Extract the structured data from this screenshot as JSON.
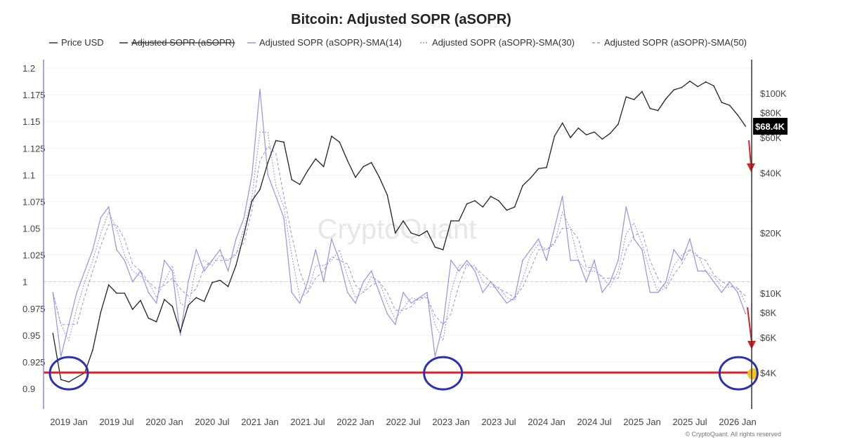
{
  "chart_data": {
    "type": "line",
    "title": "Bitcoin: Adjusted SOPR (aSOPR)",
    "legend": [
      "Price USD",
      "Adjusted SOPR (aSOPR)",
      "Adjusted SOPR (aSOPR)-SMA(14)",
      "Adjusted SOPR (aSOPR)-SMA(30)",
      "Adjusted SOPR (aSOPR)-SMA(50)"
    ],
    "legend_placement": "top",
    "legend_hidden": [
      "Adjusted SOPR (aSOPR)"
    ],
    "y_left": {
      "ticks": [
        "1.2",
        "1.175",
        "1.15",
        "1.125",
        "1.1",
        "1.075",
        "1.05",
        "1.025",
        "1",
        "0.975",
        "0.95",
        "0.925",
        "0.9"
      ],
      "range": [
        0.895,
        1.205
      ]
    },
    "y_right": {
      "scale": "log",
      "ticks": [
        "$100K",
        "$80K",
        "$60K",
        "$40K",
        "$20K",
        "$10K",
        "$8K",
        "$6K",
        "$4K"
      ],
      "tick_values": [
        100000,
        80000,
        60000,
        40000,
        20000,
        10000,
        8000,
        6000,
        4000
      ]
    },
    "x_ticks": [
      "2019 Jan",
      "2019 Jul",
      "2020 Jan",
      "2020 Jul",
      "2021 Jan",
      "2021 Jul",
      "2022 Jan",
      "2022 Jul",
      "2023 Jan",
      "2023 Jul",
      "2024 Jan",
      "2024 Jul",
      "2025 Jan",
      "2025 Jul",
      "2026 Jan"
    ],
    "x": [
      "2018-11",
      "2018-12",
      "2019-01",
      "2019-02",
      "2019-03",
      "2019-04",
      "2019-05",
      "2019-06",
      "2019-07",
      "2019-08",
      "2019-09",
      "2019-10",
      "2019-11",
      "2019-12",
      "2020-01",
      "2020-02",
      "2020-03",
      "2020-04",
      "2020-05",
      "2020-06",
      "2020-07",
      "2020-08",
      "2020-09",
      "2020-10",
      "2020-11",
      "2020-12",
      "2021-01",
      "2021-02",
      "2021-03",
      "2021-04",
      "2021-05",
      "2021-06",
      "2021-07",
      "2021-08",
      "2021-09",
      "2021-10",
      "2021-11",
      "2021-12",
      "2022-01",
      "2022-02",
      "2022-03",
      "2022-04",
      "2022-05",
      "2022-06",
      "2022-07",
      "2022-08",
      "2022-09",
      "2022-10",
      "2022-11",
      "2022-12",
      "2023-01",
      "2023-02",
      "2023-03",
      "2023-04",
      "2023-05",
      "2023-06",
      "2023-07",
      "2023-08",
      "2023-09",
      "2023-10",
      "2023-11",
      "2023-12",
      "2024-01",
      "2024-02",
      "2024-03",
      "2024-04",
      "2024-05",
      "2024-06",
      "2024-07",
      "2024-08",
      "2024-09",
      "2024-10",
      "2024-11",
      "2024-12",
      "2025-01",
      "2025-02",
      "2025-03",
      "2025-04",
      "2025-05",
      "2025-06",
      "2025-07",
      "2025-08",
      "2025-09",
      "2025-10",
      "2025-11",
      "2025-12",
      "2026-01",
      "2026-02"
    ],
    "series": [
      {
        "name": "Price USD",
        "axis": "right",
        "color": "#222222",
        "values": [
          6300,
          3700,
          3600,
          3800,
          4000,
          5200,
          8000,
          11000,
          10000,
          10000,
          8300,
          9200,
          7500,
          7200,
          9300,
          8600,
          6400,
          8700,
          9500,
          9100,
          11300,
          11600,
          10800,
          13800,
          19700,
          29000,
          33000,
          45000,
          58000,
          57000,
          37000,
          35000,
          41000,
          47000,
          43000,
          61000,
          57000,
          46000,
          38000,
          43000,
          45000,
          38000,
          31000,
          20000,
          23000,
          20000,
          19400,
          20500,
          17000,
          16500,
          23000,
          23000,
          28000,
          29000,
          27000,
          30500,
          29000,
          26000,
          27000,
          34500,
          37700,
          42000,
          42500,
          61000,
          71000,
          60000,
          67000,
          62000,
          64000,
          59000,
          63000,
          70000,
          96000,
          93000,
          102000,
          84000,
          82000,
          94000,
          104000,
          107000,
          115000,
          108000,
          114000,
          109000,
          90000,
          87000,
          78000,
          68400
        ]
      },
      {
        "name": "Adjusted SOPR (aSOPR)-SMA(14)",
        "axis": "left",
        "color": "#9b8fe6",
        "values": [
          0.99,
          0.93,
          0.96,
          0.99,
          1.01,
          1.03,
          1.06,
          1.07,
          1.03,
          1.02,
          1.0,
          1.01,
          0.99,
          0.98,
          1.02,
          1.01,
          0.95,
          1.0,
          1.03,
          1.01,
          1.02,
          1.03,
          1.01,
          1.04,
          1.06,
          1.1,
          1.18,
          1.1,
          1.08,
          1.06,
          0.99,
          0.98,
          1.0,
          1.03,
          1.0,
          1.04,
          1.02,
          0.99,
          0.98,
          1.0,
          1.01,
          0.99,
          0.97,
          0.96,
          0.99,
          0.98,
          0.985,
          0.99,
          0.93,
          0.96,
          1.02,
          1.01,
          1.02,
          1.01,
          0.99,
          1.0,
          0.99,
          0.98,
          0.985,
          1.02,
          1.03,
          1.04,
          1.02,
          1.05,
          1.08,
          1.02,
          1.02,
          1.0,
          1.02,
          0.99,
          1.0,
          1.02,
          1.07,
          1.04,
          1.03,
          0.99,
          0.99,
          1.0,
          1.03,
          1.02,
          1.04,
          1.01,
          1.01,
          1.0,
          0.99,
          1.0,
          0.99,
          0.97
        ]
      }
    ],
    "reference_line": 1,
    "annotations": {
      "support_level": 0.915,
      "last_price_label": "$68.4K",
      "highlight_dates": [
        "2019-01",
        "2022-12",
        "2026-02"
      ]
    },
    "grid": true
  },
  "watermark": "CryptoQuant",
  "copyright": "© CryptoQuant. All rights reserved",
  "colors": {
    "price": "#222222",
    "sopr": "#9b8fe6",
    "support": "#e02020",
    "circle": "#2a2fb8",
    "dot": "#f5c518"
  }
}
